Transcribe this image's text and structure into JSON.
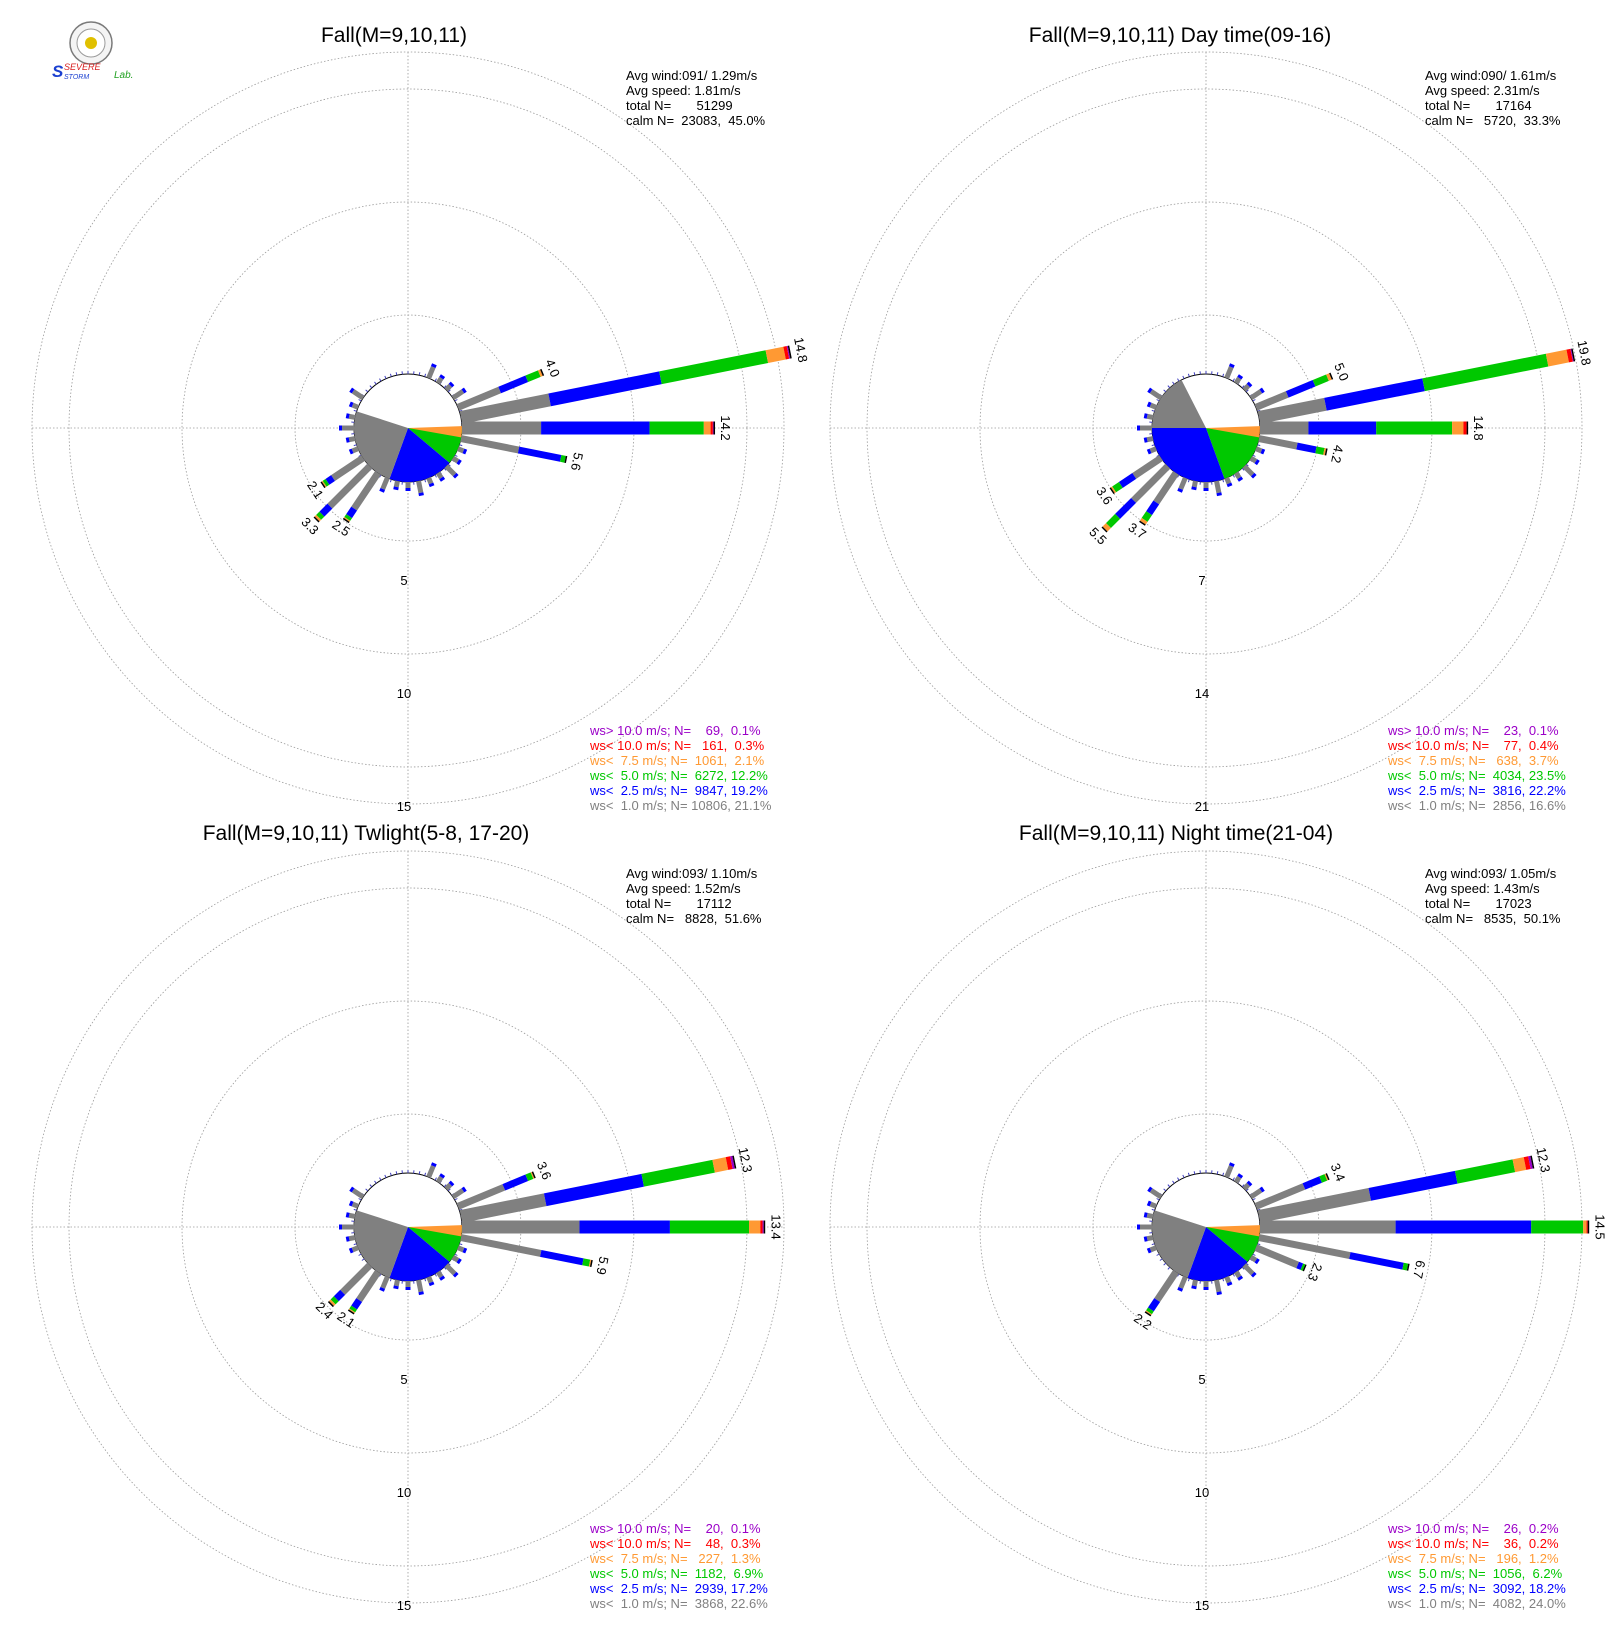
{
  "logo": {
    "text_top": "SEVERE",
    "text_bottom": "STORM",
    "text_lab": "Lab.",
    "colors": {
      "s": "#1a3fd0",
      "severe": "#d82020",
      "storm": "#1a3fd0",
      "lab": "#20a020"
    }
  },
  "colors": {
    "gt10": "#9b00c8",
    "lt10": "#ff0000",
    "lt7_5": "#ff9933",
    "lt5": "#00c800",
    "lt2_5": "#0000ff",
    "lt1": "#808080",
    "grid": "#9a9a9a"
  },
  "chart_data": [
    {
      "type": "windrose",
      "title": "Fall(M=9,10,11)",
      "stats": [
        "Avg wind:091/ 1.29m/s",
        "Avg speed: 1.81m/s",
        "total N=       51299",
        "calm N=  23083,  45.0%"
      ],
      "ring_labels": [
        "5",
        "10",
        "15"
      ],
      "legend": [
        {
          "key": "gt10",
          "text": "ws> 10.0 m/s; N=    69,  0.1%"
        },
        {
          "key": "lt10",
          "text": "ws< 10.0 m/s; N=   161,  0.3%"
        },
        {
          "key": "lt7_5",
          "text": "ws<  7.5 m/s; N=  1061,  2.1%"
        },
        {
          "key": "lt5",
          "text": "ws<  5.0 m/s; N=  6272, 12.2%"
        },
        {
          "key": "lt2_5",
          "text": "ws<  2.5 m/s; N=  9847, 19.2%"
        },
        {
          "key": "lt1",
          "text": "ws<  1.0 m/s; N= 10806, 21.1%"
        }
      ],
      "petals": [
        {
          "dir": 67.5,
          "segs": [
            2.0,
            1.3,
            0.6,
            0.1,
            0.0,
            0.0
          ],
          "label": "4.0"
        },
        {
          "dir": 78.75,
          "segs": [
            4.0,
            5.0,
            4.8,
            0.8,
            0.15,
            0.05
          ],
          "label": "14.8"
        },
        {
          "dir": 90,
          "segs": [
            3.5,
            4.8,
            2.4,
            0.3,
            0.1,
            0.03
          ],
          "label": "14.2"
        },
        {
          "dir": 101.25,
          "segs": [
            2.6,
            1.9,
            0.2,
            0.0,
            0.0,
            0.0
          ],
          "label": "5.6"
        },
        {
          "dir": 213.75,
          "segs": [
            1.9,
            0.4,
            0.15,
            0.05,
            0.0,
            0.0
          ],
          "label": "2.5"
        },
        {
          "dir": 225,
          "segs": [
            2.5,
            0.5,
            0.2,
            0.1,
            0.0,
            0.0
          ],
          "label": "3.3"
        },
        {
          "dir": 236.25,
          "segs": [
            1.6,
            0.3,
            0.15,
            0.05,
            0.0,
            0.0
          ],
          "label": "2.1"
        }
      ]
    },
    {
      "type": "windrose",
      "title": "Fall(M=9,10,11) Day time(09-16)",
      "stats": [
        "Avg wind:090/ 1.61m/s",
        "Avg speed: 2.31m/s",
        "total N=       17164",
        "calm N=   5720,  33.3%"
      ],
      "ring_labels": [
        "7",
        "14",
        "21"
      ],
      "legend": [
        {
          "key": "gt10",
          "text": "ws> 10.0 m/s; N=    23,  0.1%"
        },
        {
          "key": "lt10",
          "text": "ws< 10.0 m/s; N=    77,  0.4%"
        },
        {
          "key": "lt7_5",
          "text": "ws<  7.5 m/s; N=   638,  3.7%"
        },
        {
          "key": "lt5",
          "text": "ws<  5.0 m/s; N=  4034, 23.5%"
        },
        {
          "key": "lt2_5",
          "text": "ws<  2.5 m/s; N=  3816, 22.2%"
        },
        {
          "key": "lt1",
          "text": "ws<  1.0 m/s; N=  2856, 16.6%"
        }
      ],
      "petals": [
        {
          "dir": 67.5,
          "segs": [
            2.1,
            1.8,
            0.9,
            0.2,
            0.0,
            0.0
          ],
          "label": "5.0"
        },
        {
          "dir": 78.75,
          "segs": [
            4.2,
            6.2,
            7.8,
            1.3,
            0.25,
            0.05
          ],
          "label": "19.8"
        },
        {
          "dir": 90,
          "segs": [
            3.0,
            4.2,
            4.7,
            0.7,
            0.2,
            0.0
          ],
          "label": "14.8"
        },
        {
          "dir": 101.25,
          "segs": [
            2.4,
            1.2,
            0.5,
            0.1,
            0.0,
            0.0
          ],
          "label": "4.2"
        },
        {
          "dir": 213.75,
          "segs": [
            2.2,
            0.8,
            0.5,
            0.2,
            0.0,
            0.0
          ],
          "label": "3.7"
        },
        {
          "dir": 225,
          "segs": [
            3.0,
            1.4,
            0.8,
            0.3,
            0.0,
            0.0
          ],
          "label": "5.5"
        },
        {
          "dir": 236.25,
          "segs": [
            2.0,
            1.0,
            0.5,
            0.1,
            0.0,
            0.0
          ],
          "label": "3.6"
        }
      ]
    },
    {
      "type": "windrose",
      "title": "Fall(M=9,10,11) Twlight(5-8, 17-20)",
      "stats": [
        "Avg wind:093/ 1.10m/s",
        "Avg speed: 1.52m/s",
        "total N=       17112",
        "calm N=   8828,  51.6%"
      ],
      "ring_labels": [
        "5",
        "10",
        "15"
      ],
      "legend": [
        {
          "key": "gt10",
          "text": "ws> 10.0 m/s; N=    20,  0.1%"
        },
        {
          "key": "lt10",
          "text": "ws< 10.0 m/s; N=    48,  0.3%"
        },
        {
          "key": "lt7_5",
          "text": "ws<  7.5 m/s; N=   227,  1.3%"
        },
        {
          "key": "lt5",
          "text": "ws<  5.0 m/s; N=  1182,  6.9%"
        },
        {
          "key": "lt2_5",
          "text": "ws<  2.5 m/s; N=  2939, 17.2%"
        },
        {
          "key": "lt1",
          "text": "ws<  1.0 m/s; N=  3868, 22.6%"
        }
      ],
      "petals": [
        {
          "dir": 67.5,
          "segs": [
            2.2,
            1.1,
            0.25,
            0.05,
            0.0,
            0.0
          ],
          "label": "3.6"
        },
        {
          "dir": 78.75,
          "segs": [
            3.8,
            4.4,
            3.2,
            0.6,
            0.2,
            0.1
          ],
          "label": "12.3"
        },
        {
          "dir": 90,
          "segs": [
            5.2,
            4.0,
            3.5,
            0.5,
            0.1,
            0.05
          ],
          "label": "13.4"
        },
        {
          "dir": 101.25,
          "segs": [
            3.6,
            1.9,
            0.3,
            0.05,
            0.0,
            0.0
          ],
          "label": "5.9"
        },
        {
          "dir": 213.75,
          "segs": [
            1.5,
            0.4,
            0.15,
            0.05,
            0.0,
            0.0
          ],
          "label": "2.1"
        },
        {
          "dir": 225,
          "segs": [
            1.7,
            0.4,
            0.2,
            0.1,
            0.0,
            0.0
          ],
          "label": "2.4"
        }
      ]
    },
    {
      "type": "windrose",
      "title": "Fall(M=9,10,11) Night time(21-04)",
      "stats": [
        "Avg wind:093/ 1.05m/s",
        "Avg speed: 1.43m/s",
        "total N=       17023",
        "calm N=   8535,  50.1%"
      ],
      "ring_labels": [
        "5",
        "10",
        "15"
      ],
      "legend": [
        {
          "key": "gt10",
          "text": "ws> 10.0 m/s; N=    26,  0.2%"
        },
        {
          "key": "lt10",
          "text": "ws< 10.0 m/s; N=    36,  0.2%"
        },
        {
          "key": "lt7_5",
          "text": "ws<  7.5 m/s; N=   196,  1.2%"
        },
        {
          "key": "lt5",
          "text": "ws<  5.0 m/s; N=  1056,  6.2%"
        },
        {
          "key": "lt2_5",
          "text": "ws<  2.5 m/s; N=  3092, 18.2%"
        },
        {
          "key": "lt1",
          "text": "ws<  1.0 m/s; N=  4082, 24.0%"
        }
      ],
      "petals": [
        {
          "dir": 67.5,
          "segs": [
            2.3,
            0.8,
            0.25,
            0.05,
            0.0,
            0.0
          ],
          "label": "3.4"
        },
        {
          "dir": 78.75,
          "segs": [
            5.0,
            3.9,
            2.6,
            0.5,
            0.2,
            0.1
          ],
          "label": "12.3"
        },
        {
          "dir": 90,
          "segs": [
            6.0,
            6.0,
            2.3,
            0.15,
            0.05,
            0.0
          ],
          "label": "14.5"
        },
        {
          "dir": 101.25,
          "segs": [
            4.1,
            2.4,
            0.2,
            0.0,
            0.0,
            0.0
          ],
          "label": "6.7"
        },
        {
          "dir": 112.5,
          "segs": [
            2.0,
            0.2,
            0.1,
            0.0,
            0.0,
            0.0
          ],
          "label": "2.3"
        },
        {
          "dir": 213.75,
          "segs": [
            1.5,
            0.5,
            0.15,
            0.05,
            0.0,
            0.0
          ],
          "label": "2.2"
        }
      ]
    }
  ]
}
